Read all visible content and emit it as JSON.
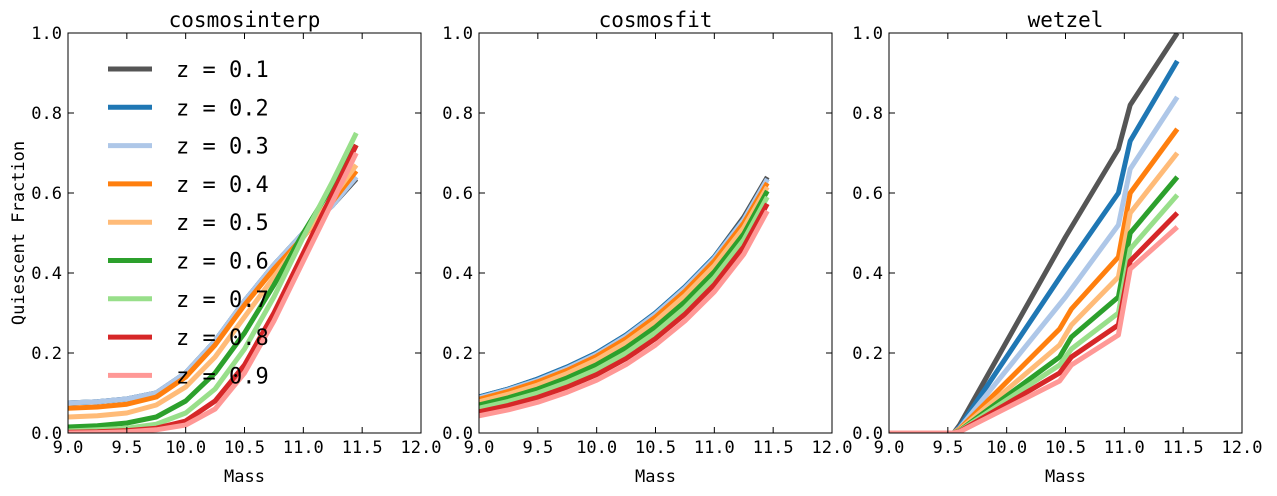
{
  "chart_data": {
    "type": "line",
    "ylabel": "Quiescent Fraction",
    "legend": {
      "placement": "upper-left (first panel)",
      "entries": [
        {
          "label": "z = 0.1",
          "color": "#555555"
        },
        {
          "label": "z = 0.2",
          "color": "#1f77b4"
        },
        {
          "label": "z = 0.3",
          "color": "#aec7e8"
        },
        {
          "label": "z = 0.4",
          "color": "#ff7f0e"
        },
        {
          "label": "z = 0.5",
          "color": "#ffbb78"
        },
        {
          "label": "z = 0.6",
          "color": "#2ca02c"
        },
        {
          "label": "z = 0.7",
          "color": "#98df8a"
        },
        {
          "label": "z = 0.8",
          "color": "#d62728"
        },
        {
          "label": "z = 0.9",
          "color": "#ff9896"
        }
      ]
    },
    "xlim": [
      9.0,
      12.0
    ],
    "ylim": [
      0.0,
      1.0
    ],
    "xticks": [
      "9.0",
      "9.5",
      "10.0",
      "10.5",
      "11.0",
      "11.5",
      "12.0"
    ],
    "yticks": [
      "0.0",
      "0.2",
      "0.4",
      "0.6",
      "0.8",
      "1.0"
    ],
    "grid": false,
    "panels": [
      {
        "title": "cosmosinterp",
        "xlabel": "Mass",
        "series": [
          {
            "x": [
              9.0,
              9.25,
              9.5,
              9.75,
              10.0,
              10.25,
              10.5,
              10.75,
              11.0,
              11.25,
              11.45
            ],
            "y": [
              0.075,
              0.078,
              0.085,
              0.1,
              0.15,
              0.23,
              0.33,
              0.42,
              0.5,
              0.57,
              0.635
            ]
          },
          {
            "x": [
              9.0,
              9.25,
              9.5,
              9.75,
              10.0,
              10.25,
              10.5,
              10.75,
              11.0,
              11.25,
              11.45
            ],
            "y": [
              0.075,
              0.078,
              0.085,
              0.1,
              0.15,
              0.23,
              0.33,
              0.42,
              0.5,
              0.57,
              0.64
            ]
          },
          {
            "x": [
              9.0,
              9.25,
              9.5,
              9.75,
              10.0,
              10.25,
              10.5,
              10.75,
              11.0,
              11.25,
              11.45
            ],
            "y": [
              0.075,
              0.078,
              0.085,
              0.1,
              0.15,
              0.23,
              0.33,
              0.42,
              0.5,
              0.57,
              0.64
            ]
          },
          {
            "x": [
              9.0,
              9.25,
              9.5,
              9.75,
              10.0,
              10.25,
              10.5,
              10.75,
              11.0,
              11.25,
              11.45
            ],
            "y": [
              0.062,
              0.065,
              0.072,
              0.09,
              0.14,
              0.22,
              0.32,
              0.41,
              0.49,
              0.58,
              0.655
            ]
          },
          {
            "x": [
              9.0,
              9.25,
              9.5,
              9.75,
              10.0,
              10.25,
              10.5,
              10.75,
              11.0,
              11.25,
              11.45
            ],
            "y": [
              0.04,
              0.043,
              0.05,
              0.07,
              0.115,
              0.19,
              0.29,
              0.39,
              0.49,
              0.59,
              0.67
            ]
          },
          {
            "x": [
              9.0,
              9.25,
              9.5,
              9.75,
              10.0,
              10.25,
              10.5,
              10.75,
              11.0,
              11.25,
              11.45
            ],
            "y": [
              0.015,
              0.018,
              0.025,
              0.04,
              0.08,
              0.15,
              0.25,
              0.37,
              0.5,
              0.62,
              0.72
            ]
          },
          {
            "x": [
              9.0,
              9.25,
              9.5,
              9.75,
              10.0,
              10.25,
              10.5,
              10.75,
              11.0,
              11.25,
              11.45
            ],
            "y": [
              0.005,
              0.008,
              0.012,
              0.022,
              0.05,
              0.11,
              0.21,
              0.34,
              0.49,
              0.63,
              0.75
            ]
          },
          {
            "x": [
              9.0,
              9.25,
              9.5,
              9.75,
              10.0,
              10.25,
              10.5,
              10.75,
              11.0,
              11.25,
              11.45
            ],
            "y": [
              0.002,
              0.003,
              0.006,
              0.012,
              0.03,
              0.08,
              0.17,
              0.3,
              0.45,
              0.6,
              0.72
            ]
          },
          {
            "x": [
              9.0,
              9.25,
              9.5,
              9.75,
              10.0,
              10.25,
              10.5,
              10.75,
              11.0,
              11.25,
              11.45
            ],
            "y": [
              0.0,
              0.001,
              0.003,
              0.008,
              0.02,
              0.06,
              0.15,
              0.28,
              0.43,
              0.58,
              0.7
            ]
          }
        ]
      },
      {
        "title": "cosmosfit",
        "xlabel": "Mass",
        "series": [
          {
            "x": [
              9.0,
              9.25,
              9.5,
              9.75,
              10.0,
              10.25,
              10.5,
              10.75,
              11.0,
              11.25,
              11.45
            ],
            "y": [
              0.09,
              0.11,
              0.135,
              0.165,
              0.2,
              0.245,
              0.3,
              0.365,
              0.44,
              0.54,
              0.64
            ]
          },
          {
            "x": [
              9.0,
              9.25,
              9.5,
              9.75,
              10.0,
              10.25,
              10.5,
              10.75,
              11.0,
              11.25,
              11.45
            ],
            "y": [
              0.09,
              0.11,
              0.135,
              0.165,
              0.2,
              0.245,
              0.3,
              0.365,
              0.44,
              0.535,
              0.635
            ]
          },
          {
            "x": [
              9.0,
              9.25,
              9.5,
              9.75,
              10.0,
              10.25,
              10.5,
              10.75,
              11.0,
              11.25,
              11.45
            ],
            "y": [
              0.088,
              0.108,
              0.132,
              0.162,
              0.197,
              0.242,
              0.297,
              0.362,
              0.437,
              0.533,
              0.635
            ]
          },
          {
            "x": [
              9.0,
              9.25,
              9.5,
              9.75,
              10.0,
              10.25,
              10.5,
              10.75,
              11.0,
              11.25,
              11.45
            ],
            "y": [
              0.084,
              0.104,
              0.128,
              0.157,
              0.192,
              0.236,
              0.29,
              0.354,
              0.43,
              0.525,
              0.625
            ]
          },
          {
            "x": [
              9.0,
              9.25,
              9.5,
              9.75,
              10.0,
              10.25,
              10.5,
              10.75,
              11.0,
              11.25,
              11.45
            ],
            "y": [
              0.078,
              0.097,
              0.12,
              0.149,
              0.183,
              0.226,
              0.279,
              0.343,
              0.418,
              0.513,
              0.615
            ]
          },
          {
            "x": [
              9.0,
              9.25,
              9.5,
              9.75,
              10.0,
              10.25,
              10.5,
              10.75,
              11.0,
              11.25,
              11.45
            ],
            "y": [
              0.07,
              0.088,
              0.11,
              0.138,
              0.171,
              0.213,
              0.265,
              0.328,
              0.403,
              0.498,
              0.605
            ]
          },
          {
            "x": [
              9.0,
              9.25,
              9.5,
              9.75,
              10.0,
              10.25,
              10.5,
              10.75,
              11.0,
              11.25,
              11.45
            ],
            "y": [
              0.062,
              0.079,
              0.1,
              0.127,
              0.159,
              0.2,
              0.251,
              0.313,
              0.388,
              0.483,
              0.59
            ]
          },
          {
            "x": [
              9.0,
              9.25,
              9.5,
              9.75,
              10.0,
              10.25,
              10.5,
              10.75,
              11.0,
              11.25,
              11.45
            ],
            "y": [
              0.053,
              0.069,
              0.089,
              0.115,
              0.146,
              0.186,
              0.236,
              0.297,
              0.371,
              0.466,
              0.573
            ]
          },
          {
            "x": [
              9.0,
              9.25,
              9.5,
              9.75,
              10.0,
              10.25,
              10.5,
              10.75,
              11.0,
              11.25,
              11.45
            ],
            "y": [
              0.043,
              0.058,
              0.077,
              0.102,
              0.132,
              0.171,
              0.22,
              0.28,
              0.353,
              0.447,
              0.555
            ]
          }
        ]
      },
      {
        "title": "wetzel",
        "xlabel": "Mass",
        "series": [
          {
            "x": [
              9.0,
              9.55,
              9.6,
              10.5,
              10.95,
              11.05,
              11.45
            ],
            "y": [
              0.0,
              0.0,
              0.02,
              0.49,
              0.71,
              0.82,
              1.0
            ]
          },
          {
            "x": [
              9.0,
              9.55,
              9.6,
              10.5,
              10.95,
              11.05,
              11.45
            ],
            "y": [
              0.0,
              0.0,
              0.015,
              0.41,
              0.6,
              0.73,
              0.93
            ]
          },
          {
            "x": [
              9.0,
              9.55,
              9.6,
              10.5,
              10.95,
              11.05,
              11.45
            ],
            "y": [
              0.0,
              0.0,
              0.012,
              0.34,
              0.52,
              0.66,
              0.84
            ]
          },
          {
            "x": [
              9.0,
              9.55,
              9.6,
              10.45,
              10.55,
              10.95,
              11.05,
              11.45
            ],
            "y": [
              0.0,
              0.0,
              0.01,
              0.26,
              0.31,
              0.44,
              0.6,
              0.76
            ]
          },
          {
            "x": [
              9.0,
              9.55,
              9.6,
              10.45,
              10.55,
              10.95,
              11.05,
              11.45
            ],
            "y": [
              0.0,
              0.0,
              0.008,
              0.22,
              0.27,
              0.39,
              0.55,
              0.7
            ]
          },
          {
            "x": [
              9.0,
              9.55,
              9.6,
              10.45,
              10.55,
              10.95,
              11.05,
              11.45
            ],
            "y": [
              0.0,
              0.0,
              0.006,
              0.19,
              0.24,
              0.34,
              0.5,
              0.64
            ]
          },
          {
            "x": [
              9.0,
              9.55,
              9.6,
              10.45,
              10.55,
              10.95,
              11.05,
              11.45
            ],
            "y": [
              0.0,
              0.0,
              0.005,
              0.17,
              0.21,
              0.3,
              0.46,
              0.595
            ]
          },
          {
            "x": [
              9.0,
              9.55,
              9.6,
              10.45,
              10.55,
              10.95,
              11.05,
              11.45
            ],
            "y": [
              0.0,
              0.0,
              0.004,
              0.15,
              0.19,
              0.27,
              0.43,
              0.55
            ]
          },
          {
            "x": [
              9.0,
              9.55,
              9.6,
              10.45,
              10.55,
              10.95,
              11.05,
              11.45
            ],
            "y": [
              0.0,
              0.0,
              0.003,
              0.13,
              0.17,
              0.245,
              0.41,
              0.515
            ]
          }
        ]
      }
    ]
  }
}
